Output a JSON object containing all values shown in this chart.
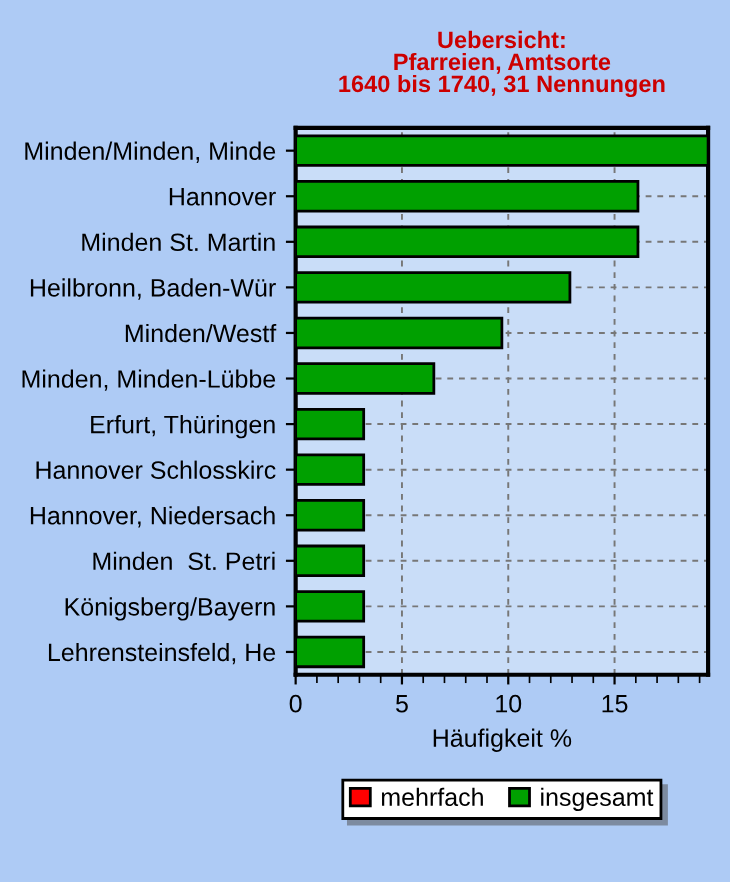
{
  "chart_data": {
    "type": "bar",
    "orientation": "horizontal",
    "title": "Uebersicht:\nPfarreien, Amtsorte\n1640 bis 1740, 31 Nennungen",
    "xlabel": "Häufigkeit %",
    "categories": [
      "Minden/Minden, Minde",
      "Hannover",
      "Minden St. Martin",
      "Heilbronn, Baden-Wür",
      "Minden/Westf",
      "Minden, Minden-Lübbe",
      "Erfurt, Thüringen",
      "Hannover Schlosskirc",
      "Hannover, Niedersach",
      "Minden  St. Petri",
      "Königsberg/Bayern",
      "Lehrensteinsfeld, He"
    ],
    "series": [
      {
        "name": "mehrfach",
        "color": "#ff0000",
        "values": [
          null,
          null,
          null,
          null,
          null,
          null,
          null,
          null,
          null,
          null,
          null,
          null
        ]
      },
      {
        "name": "insgesamt",
        "color": "#00a000",
        "values": [
          19.4,
          16.1,
          16.1,
          12.9,
          9.7,
          6.5,
          3.2,
          3.2,
          3.2,
          3.2,
          3.2,
          3.2
        ]
      }
    ],
    "xlim": [
      0,
      19.4
    ],
    "xticks": [
      0,
      5,
      10,
      15
    ],
    "grid": true,
    "legend": "bottom"
  }
}
